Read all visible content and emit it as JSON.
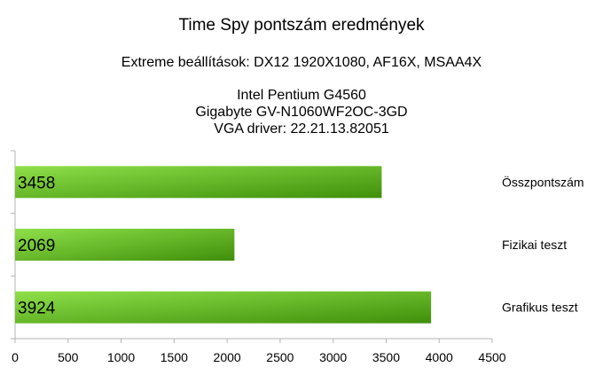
{
  "chart_data": {
    "type": "bar",
    "orientation": "horizontal",
    "title": "Time Spy pontszám eredmények",
    "subtitle": "Extreme beállítások: DX12 1920X1080, AF16X, MSAA4X",
    "system_info": [
      "Intel Pentium G4560",
      "Gigabyte GV-N1060WF2OC-3GD",
      "VGA driver: 22.21.13.82051"
    ],
    "categories": [
      "Összpontszám",
      "Fizikai teszt",
      "Grafikus teszt"
    ],
    "values": [
      3458,
      2069,
      3924
    ],
    "xlim": [
      0,
      4500
    ],
    "xticks": [
      0,
      500,
      1000,
      1500,
      2000,
      2500,
      3000,
      3500,
      4000,
      4500
    ],
    "xlabel": "",
    "ylabel": "",
    "category_axis_position": "right",
    "data_labels": "inside-start",
    "grid": false,
    "colors": {
      "bar_light": "#8fe04a",
      "bar_dark": "#3f8f0a"
    }
  }
}
